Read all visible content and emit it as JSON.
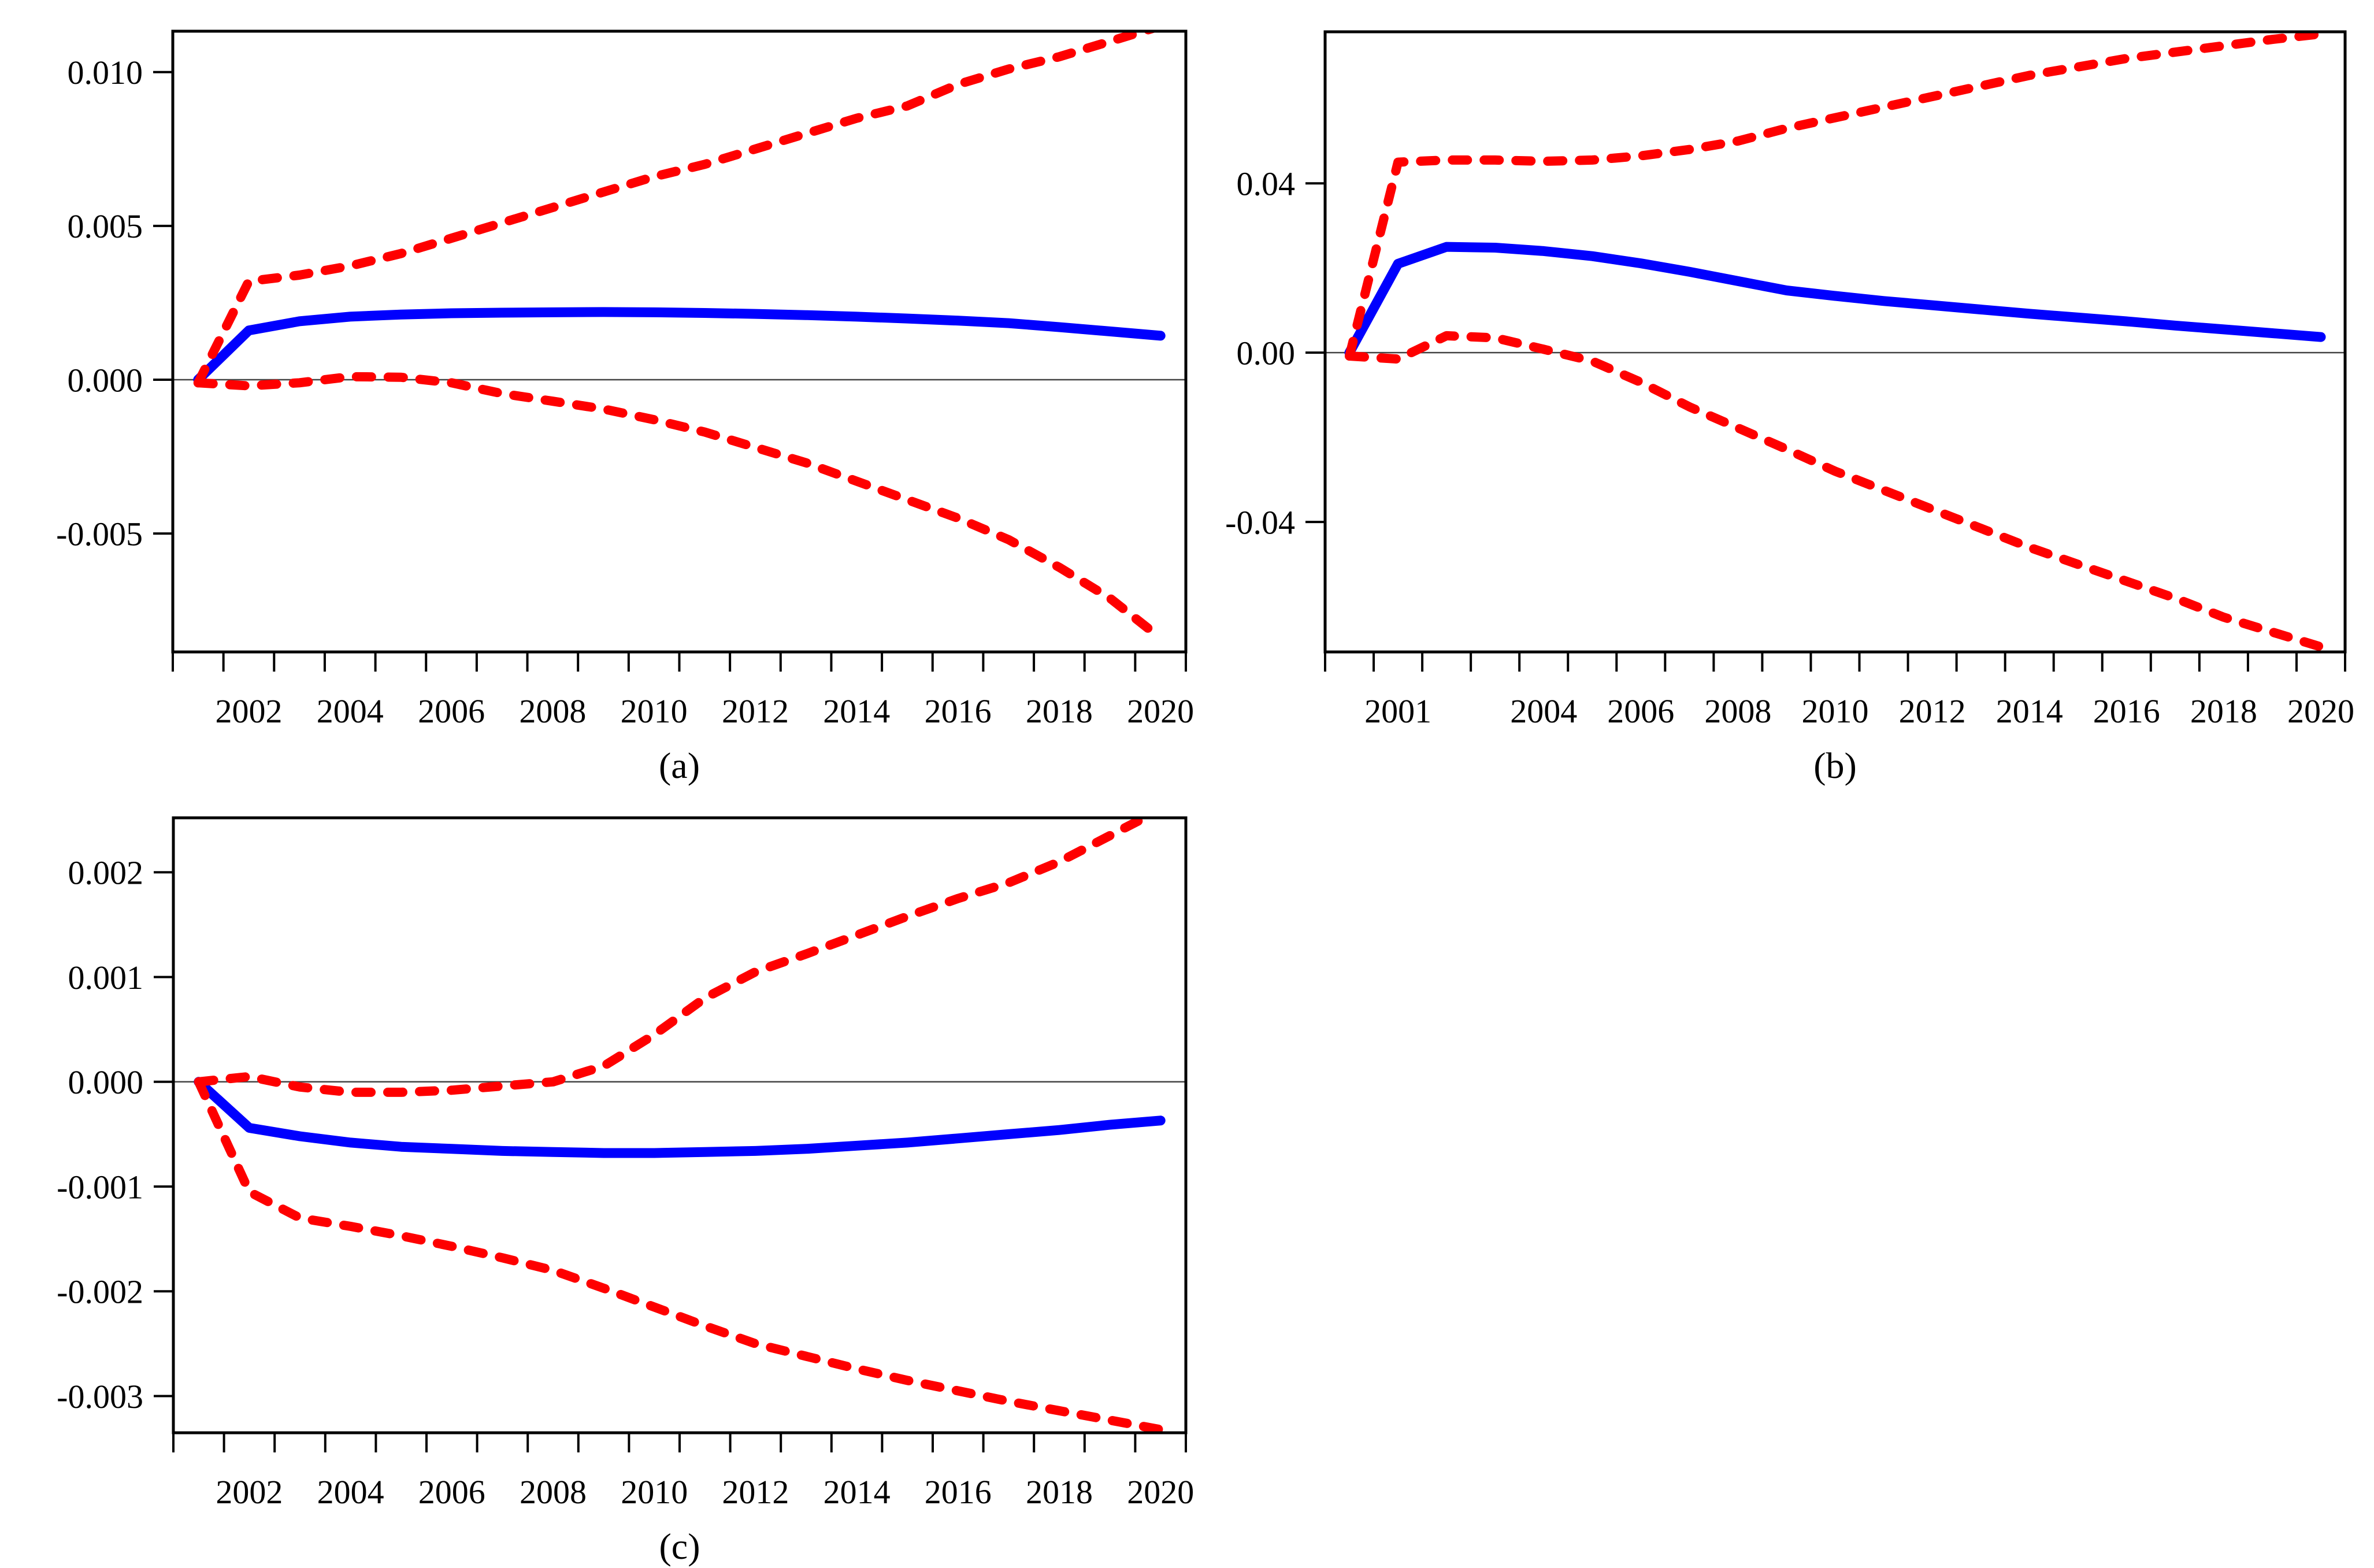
{
  "page": {
    "background": "#ffffff"
  },
  "colors": {
    "estimate": "#0000fe",
    "band": "#fe0000",
    "axis": "#000000",
    "zero_line": "#444444"
  },
  "chart_data": [
    {
      "type": "line",
      "title": "(a)",
      "xlabel": "",
      "ylabel": "",
      "xlim": [
        2001,
        2021
      ],
      "ylim": [
        -0.00885,
        0.01133
      ],
      "x_plot_offset": 0.5,
      "grid": false,
      "zero_line": true,
      "legend": null,
      "ytick_values": [
        0.01,
        0.005,
        0.0,
        -0.005
      ],
      "ytick_labels": [
        "0.010",
        "0.005",
        "0.000",
        "-0.005"
      ],
      "x_minor_tick_step": 1,
      "xlabel_texts": [
        "2002",
        "2004",
        "2006",
        "2008",
        "2010",
        "2012",
        "2014",
        "2016",
        "2018",
        "2020"
      ],
      "xlabel_positions": [
        2002.5,
        2004.5,
        2006.5,
        2008.5,
        2010.5,
        2012.5,
        2014.5,
        2016.5,
        2018.5,
        2020.5
      ],
      "x": [
        2001,
        2002,
        2003,
        2004,
        2005,
        2006,
        2007,
        2008,
        2009,
        2010,
        2011,
        2012,
        2013,
        2014,
        2015,
        2016,
        2017,
        2018,
        2019,
        2020
      ],
      "series": [
        {
          "name": "point-estimate",
          "style": "solid",
          "color": "#0000fe",
          "values": [
            0.0,
            0.0016,
            0.0019,
            0.00205,
            0.00212,
            0.00216,
            0.00218,
            0.00219,
            0.0022,
            0.00219,
            0.00217,
            0.00214,
            0.0021,
            0.00205,
            0.00199,
            0.00192,
            0.00184,
            0.00171,
            0.00157,
            0.00143
          ]
        },
        {
          "name": "upper-confidence-band",
          "style": "dashed",
          "color": "#fe0000",
          "values": [
            -0.0001,
            0.0032,
            0.0034,
            0.0037,
            0.0041,
            0.0046,
            0.0051,
            0.0056,
            0.0061,
            0.0066,
            0.007,
            0.0075,
            0.008,
            0.0085,
            0.0089,
            0.0096,
            0.0101,
            0.0105,
            0.011,
            0.0115
          ]
        },
        {
          "name": "lower-confidence-band",
          "style": "dashed",
          "color": "#fe0000",
          "values": [
            -0.0001,
            -0.0002,
            -0.0001,
            0.0001,
            8e-05,
            -0.0001,
            -0.00045,
            -0.0007,
            -0.00095,
            -0.0013,
            -0.0017,
            -0.0022,
            -0.0027,
            -0.0033,
            -0.0039,
            -0.0045,
            -0.0052,
            -0.0061,
            -0.0071,
            -0.0084
          ]
        }
      ]
    },
    {
      "type": "line",
      "title": "(b)",
      "xlabel": "",
      "ylabel": "",
      "xlim": [
        2000,
        2021
      ],
      "ylim": [
        -0.0707,
        0.0758
      ],
      "x_plot_offset": 0.5,
      "grid": false,
      "zero_line": true,
      "legend": null,
      "ytick_values": [
        0.04,
        0.0,
        -0.04
      ],
      "ytick_labels": [
        "0.04",
        "0.00",
        "-0.04"
      ],
      "x_minor_tick_step": 1,
      "xlabel_texts": [
        "2001",
        "2004",
        "2006",
        "2008",
        "2010",
        "2012",
        "2014",
        "2016",
        "2018",
        "2020"
      ],
      "xlabel_positions": [
        2001.5,
        2004.5,
        2006.5,
        2008.5,
        2010.5,
        2012.5,
        2014.5,
        2016.5,
        2018.5,
        2020.5
      ],
      "x": [
        2000,
        2001,
        2002,
        2003,
        2004,
        2005,
        2006,
        2007,
        2008,
        2009,
        2010,
        2011,
        2012,
        2013,
        2014,
        2015,
        2016,
        2017,
        2018,
        2019,
        2020
      ],
      "series": [
        {
          "name": "point-estimate",
          "style": "solid",
          "color": "#0000fe",
          "values": [
            0.0,
            0.021,
            0.025,
            0.0248,
            0.024,
            0.0228,
            0.0211,
            0.0191,
            0.0169,
            0.0147,
            0.0134,
            0.0122,
            0.0112,
            0.0102,
            0.0092,
            0.0083,
            0.0074,
            0.0064,
            0.0055,
            0.0046,
            0.0037
          ]
        },
        {
          "name": "upper-confidence-band",
          "style": "dashed",
          "color": "#fe0000",
          "values": [
            -0.0008,
            0.045,
            0.0455,
            0.0455,
            0.0452,
            0.0455,
            0.0465,
            0.048,
            0.05,
            0.053,
            0.0555,
            0.058,
            0.0605,
            0.063,
            0.0655,
            0.0675,
            0.0695,
            0.071,
            0.0725,
            0.074,
            0.0753
          ]
        },
        {
          "name": "lower-confidence-band",
          "style": "dashed",
          "color": "#fe0000",
          "values": [
            -0.0008,
            -0.0015,
            0.004,
            0.0035,
            0.0008,
            -0.002,
            -0.007,
            -0.0128,
            -0.0178,
            -0.0228,
            -0.028,
            -0.0325,
            -0.037,
            -0.0415,
            -0.046,
            -0.05,
            -0.054,
            -0.058,
            -0.0625,
            -0.066,
            -0.0695
          ]
        }
      ]
    },
    {
      "type": "line",
      "title": "(c)",
      "xlabel": "",
      "ylabel": "",
      "xlim": [
        2001,
        2021
      ],
      "ylim": [
        -0.00335,
        0.00252
      ],
      "x_plot_offset": 0.5,
      "grid": false,
      "zero_line": true,
      "legend": null,
      "ytick_values": [
        0.002,
        0.001,
        0.0,
        -0.001,
        -0.002,
        -0.003
      ],
      "ytick_labels": [
        "0.002",
        "0.001",
        "0.000",
        "-0.001",
        "-0.002",
        "-0.003"
      ],
      "x_minor_tick_step": 1,
      "xlabel_texts": [
        "2002",
        "2004",
        "2006",
        "2008",
        "2010",
        "2012",
        "2014",
        "2016",
        "2018",
        "2020"
      ],
      "xlabel_positions": [
        2002.5,
        2004.5,
        2006.5,
        2008.5,
        2010.5,
        2012.5,
        2014.5,
        2016.5,
        2018.5,
        2020.5
      ],
      "x": [
        2001,
        2002,
        2003,
        2004,
        2005,
        2006,
        2007,
        2008,
        2009,
        2010,
        2011,
        2012,
        2013,
        2014,
        2015,
        2016,
        2017,
        2018,
        2019,
        2020
      ],
      "series": [
        {
          "name": "point-estimate",
          "style": "solid",
          "color": "#0000fe",
          "values": [
            0.0,
            -0.00044,
            -0.00052,
            -0.00058,
            -0.00062,
            -0.00064,
            -0.00066,
            -0.00067,
            -0.00068,
            -0.00068,
            -0.00067,
            -0.00066,
            -0.00064,
            -0.00061,
            -0.00058,
            -0.00054,
            -0.0005,
            -0.00046,
            -0.00041,
            -0.00037
          ]
        },
        {
          "name": "upper-confidence-band",
          "style": "dashed",
          "color": "#fe0000",
          "values": [
            0.0,
            5e-05,
            -5e-05,
            -0.0001,
            -0.0001,
            -8e-05,
            -4e-05,
            0.0,
            0.00015,
            0.00045,
            0.0008,
            0.00105,
            0.00122,
            0.0014,
            0.00158,
            0.00175,
            0.0019,
            0.0021,
            0.00235,
            0.0026
          ]
        },
        {
          "name": "lower-confidence-band",
          "style": "dashed",
          "color": "#fe0000",
          "values": [
            0.0,
            -0.00105,
            -0.0013,
            -0.00138,
            -0.00147,
            -0.00157,
            -0.00168,
            -0.0018,
            -0.00197,
            -0.00215,
            -0.00233,
            -0.0025,
            -0.00262,
            -0.00274,
            -0.00285,
            -0.00295,
            -0.00305,
            -0.00314,
            -0.00323,
            -0.00332
          ]
        }
      ]
    }
  ]
}
